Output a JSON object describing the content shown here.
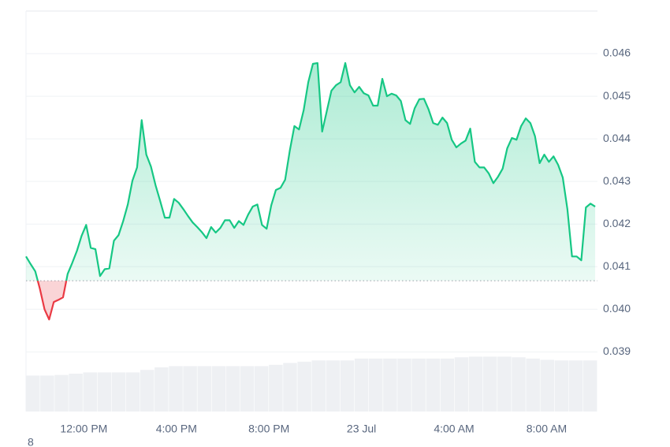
{
  "chart_data": {
    "type": "line",
    "x": [
      9.5,
      9.7,
      9.9,
      10.1,
      10.3,
      10.5,
      10.7,
      10.9,
      11.1,
      11.3,
      11.5,
      11.7,
      11.9,
      12.1,
      12.3,
      12.5,
      12.7,
      12.9,
      13.1,
      13.3,
      13.5,
      13.7,
      13.9,
      14.1,
      14.3,
      14.5,
      14.7,
      14.9,
      15.1,
      15.3,
      15.5,
      15.7,
      15.9,
      16.1,
      16.3,
      16.5,
      16.7,
      16.9,
      17.1,
      17.3,
      17.5,
      17.7,
      17.9,
      18.1,
      18.3,
      18.5,
      18.7,
      18.9,
      19.1,
      19.3,
      19.5,
      19.7,
      19.9,
      20.1,
      20.3,
      20.5,
      20.7,
      20.9,
      21.1,
      21.3,
      21.5,
      21.7,
      21.9,
      22.1,
      22.3,
      22.5,
      22.7,
      22.9,
      23.1,
      23.3,
      23.5,
      23.7,
      23.9,
      24.1,
      24.3,
      24.5,
      24.7,
      24.9,
      25.1,
      25.3,
      25.5,
      25.7,
      25.9,
      26.1,
      26.3,
      26.5,
      26.7,
      26.9,
      27.1,
      27.3,
      27.5,
      27.7,
      27.9,
      28.1,
      28.3,
      28.5,
      28.7,
      28.9,
      29.1,
      29.3,
      29.5,
      29.7,
      29.9,
      30.1,
      30.3,
      30.5,
      30.7,
      30.9,
      31.1,
      31.3,
      31.5,
      31.7,
      31.9,
      32.1,
      32.3,
      32.5,
      32.7,
      32.9,
      33.1,
      33.3,
      33.5,
      33.7,
      33.9,
      34.1
    ],
    "series": [
      {
        "color": "#16c784",
        "negative_color": "#ea3943",
        "axis": "y",
        "values": [
          0.04124,
          0.04106,
          0.04089,
          0.04048,
          0.04,
          0.03976,
          0.04017,
          0.04022,
          0.04028,
          0.04083,
          0.04109,
          0.04137,
          0.04172,
          0.04198,
          0.04144,
          0.04141,
          0.04078,
          0.04094,
          0.04096,
          0.04161,
          0.04174,
          0.04207,
          0.04246,
          0.04302,
          0.04333,
          0.04444,
          0.04363,
          0.04335,
          0.04291,
          0.04254,
          0.04215,
          0.04215,
          0.04259,
          0.0425,
          0.04235,
          0.04219,
          0.04204,
          0.04193,
          0.04181,
          0.04167,
          0.04193,
          0.0418,
          0.04191,
          0.04209,
          0.04209,
          0.04191,
          0.04207,
          0.04198,
          0.04222,
          0.04241,
          0.04246,
          0.04198,
          0.04189,
          0.04244,
          0.0428,
          0.04285,
          0.04304,
          0.04372,
          0.0443,
          0.04422,
          0.04467,
          0.04533,
          0.04576,
          0.04578,
          0.04417,
          0.04465,
          0.04513,
          0.04526,
          0.04533,
          0.04578,
          0.04526,
          0.04509,
          0.04522,
          0.04507,
          0.04502,
          0.04478,
          0.04478,
          0.04541,
          0.045,
          0.04506,
          0.04502,
          0.04489,
          0.04444,
          0.04435,
          0.04472,
          0.04493,
          0.04494,
          0.04469,
          0.04437,
          0.04433,
          0.0445,
          0.04437,
          0.04398,
          0.0438,
          0.04389,
          0.04396,
          0.04424,
          0.04346,
          0.04333,
          0.04333,
          0.04319,
          0.04296,
          0.04311,
          0.0433,
          0.04378,
          0.04402,
          0.04398,
          0.0443,
          0.04448,
          0.04437,
          0.04406,
          0.04343,
          0.04363,
          0.04346,
          0.04359,
          0.04339,
          0.04309,
          0.04235,
          0.04124,
          0.04124,
          0.04115,
          0.04239,
          0.04248,
          0.04241
        ]
      }
    ],
    "baseline": 0.04067,
    "volume": {
      "color": "#eef0f3",
      "axis": "y2",
      "values": [
        57,
        57,
        58,
        60,
        62,
        62,
        62,
        62,
        66,
        70,
        72,
        72,
        72,
        72,
        72,
        72,
        72,
        74,
        77,
        79,
        81,
        81,
        81,
        84,
        84,
        84,
        84,
        84,
        84,
        84,
        86,
        87,
        87,
        87,
        86,
        84,
        82,
        81,
        81,
        81
      ]
    },
    "xlim": [
      9.5,
      34.2
    ],
    "xticks": [
      {
        "value": 12,
        "label": "12:00 PM"
      },
      {
        "value": 16,
        "label": "4:00 PM"
      },
      {
        "value": 20,
        "label": "8:00 PM"
      },
      {
        "value": 24,
        "label": "23 Jul"
      },
      {
        "value": 28,
        "label": "4:00 AM"
      },
      {
        "value": 32,
        "label": "8:00 AM"
      }
    ],
    "ylim": [
      0.0376,
      0.047
    ],
    "yticks": [
      0.039,
      {
        "value": 0.04,
        "label": "0.040"
      },
      0.041,
      0.042,
      0.043,
      0.044,
      0.045,
      0.046
    ],
    "y2lim": [
      0,
      100
    ],
    "grid": true,
    "footnote": "8"
  }
}
